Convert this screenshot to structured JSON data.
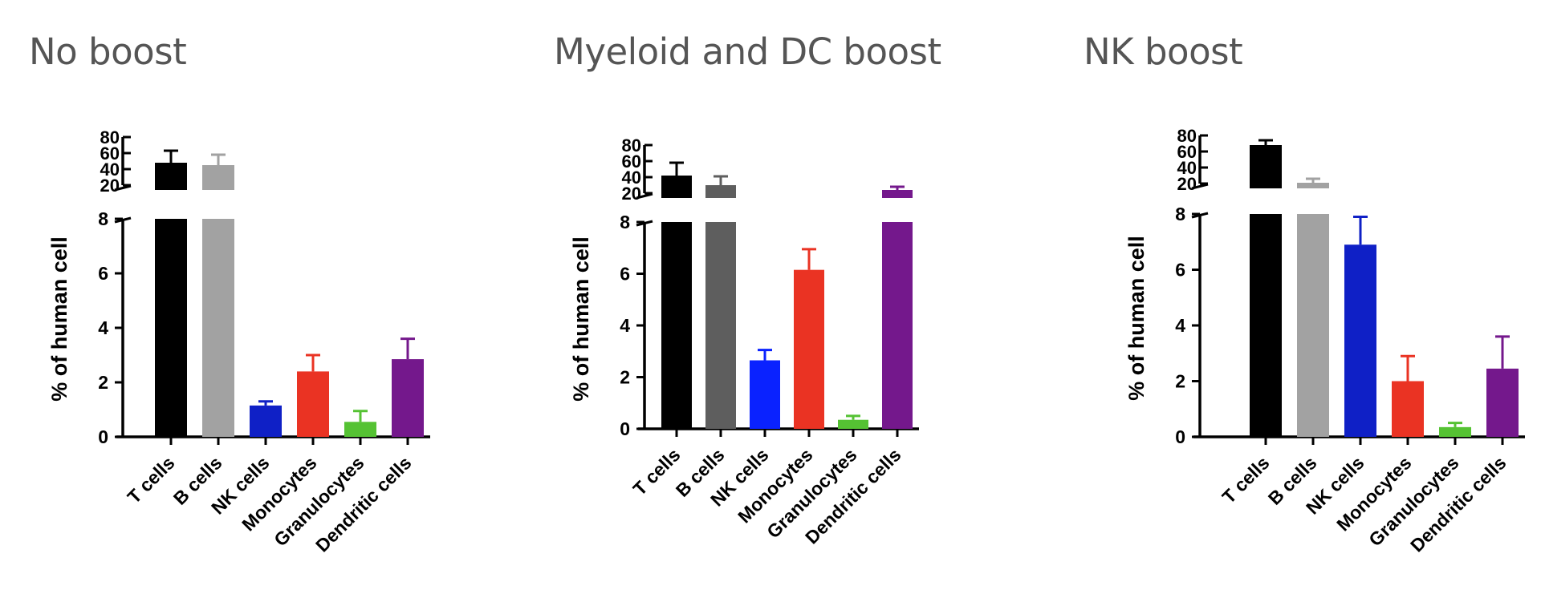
{
  "panels": [
    {
      "title": "No boost"
    },
    {
      "title": "Myeloid and DC boost"
    },
    {
      "title": "NK boost"
    }
  ],
  "chart_data": [
    {
      "type": "bar",
      "title": "No boost",
      "xlabel": "",
      "ylabel": "% of human cell",
      "axis_break": {
        "lower_range": [
          0,
          8
        ],
        "upper_range": [
          20,
          80
        ]
      },
      "lower_ticks": [
        0,
        2,
        4,
        6,
        8
      ],
      "upper_ticks": [
        20,
        40,
        60,
        80
      ],
      "categories": [
        "T cells",
        "B cells",
        "NK cells",
        "Monocytes",
        "Granulocytes",
        "Dendritic cells"
      ],
      "values": [
        48,
        45,
        1.15,
        2.4,
        0.55,
        2.85
      ],
      "errors": [
        15,
        13,
        0.15,
        0.6,
        0.4,
        0.75
      ],
      "colors": [
        "#000000",
        "#a2a2a2",
        "#0f20c6",
        "#ea3323",
        "#55c233",
        "#74188c"
      ]
    },
    {
      "type": "bar",
      "title": "Myeloid and DC boost",
      "xlabel": "",
      "ylabel": "% of human cell",
      "axis_break": {
        "lower_range": [
          0,
          8
        ],
        "upper_range": [
          20,
          80
        ]
      },
      "lower_ticks": [
        0,
        2,
        4,
        6,
        8
      ],
      "upper_ticks": [
        20,
        40,
        60,
        80
      ],
      "categories": [
        "T cells",
        "B cells",
        "NK cells",
        "Monocytes",
        "Granulocytes",
        "Dendritic cells"
      ],
      "values": [
        42,
        30,
        2.65,
        6.15,
        0.35,
        24
      ],
      "errors": [
        16,
        11,
        0.4,
        0.8,
        0.15,
        4
      ],
      "colors": [
        "#000000",
        "#5e5e5e",
        "#0a22ff",
        "#ea3323",
        "#55c233",
        "#74188c"
      ]
    },
    {
      "type": "bar",
      "title": "NK boost",
      "xlabel": "",
      "ylabel": "% of human cell",
      "axis_break": {
        "lower_range": [
          0,
          8
        ],
        "upper_range": [
          20,
          80
        ]
      },
      "lower_ticks": [
        0,
        2,
        4,
        6,
        8
      ],
      "upper_ticks": [
        20,
        40,
        60,
        80
      ],
      "categories": [
        "T cells",
        "B cells",
        "NK cells",
        "Monocytes",
        "Granulocytes",
        "Dendritic cells"
      ],
      "values": [
        68,
        21,
        6.9,
        2.0,
        0.35,
        2.45
      ],
      "errors": [
        6,
        5,
        1.0,
        0.9,
        0.15,
        1.15
      ],
      "colors": [
        "#000000",
        "#a2a2a2",
        "#0f20c6",
        "#ea3323",
        "#55c233",
        "#74188c"
      ]
    }
  ]
}
